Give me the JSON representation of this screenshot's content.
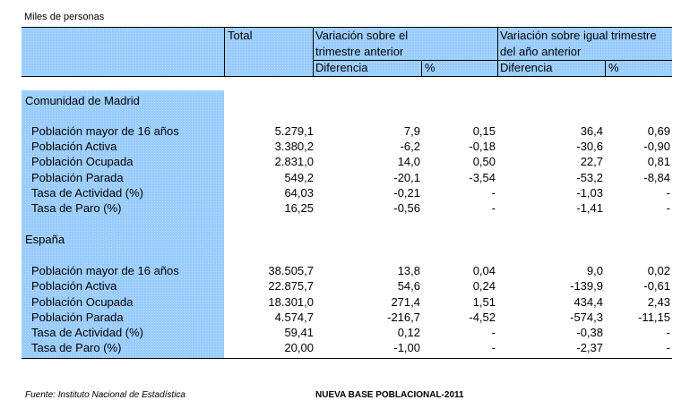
{
  "unit_label": "Miles de personas",
  "header": {
    "total": "Total",
    "var_trim_line1": "Variación sobre el",
    "var_trim_line2": "trimestre anterior",
    "var_anio_line1": "Variación sobre igual trimestre",
    "var_anio_line2": "del año anterior",
    "diferencia": "Diferencia",
    "pct": "%"
  },
  "sections": [
    {
      "title": "Comunidad de Madrid",
      "rows": [
        {
          "label": "Población mayor de 16 años",
          "total": "5.279,1",
          "dif_trim": "7,9",
          "pct_trim": "0,15",
          "dif_anio": "36,4",
          "pct_anio": "0,69"
        },
        {
          "label": "Población Activa",
          "total": "3.380,2",
          "dif_trim": "-6,2",
          "pct_trim": "-0,18",
          "dif_anio": "-30,6",
          "pct_anio": "-0,90"
        },
        {
          "label": "Población Ocupada",
          "total": "2.831,0",
          "dif_trim": "14,0",
          "pct_trim": "0,50",
          "dif_anio": "22,7",
          "pct_anio": "0,81"
        },
        {
          "label": "Población Parada",
          "total": "549,2",
          "dif_trim": "-20,1",
          "pct_trim": "-3,54",
          "dif_anio": "-53,2",
          "pct_anio": "-8,84"
        },
        {
          "label": "Tasa de Actividad (%)",
          "total": "64,03",
          "dif_trim": "-0,21",
          "pct_trim": "-",
          "dif_anio": "-1,03",
          "pct_anio": "-"
        },
        {
          "label": "Tasa de Paro (%)",
          "total": "16,25",
          "dif_trim": "-0,56",
          "pct_trim": "-",
          "dif_anio": "-1,41",
          "pct_anio": "-"
        }
      ]
    },
    {
      "title": "España",
      "rows": [
        {
          "label": "Población mayor de 16 años",
          "total": "38.505,7",
          "dif_trim": "13,8",
          "pct_trim": "0,04",
          "dif_anio": "9,0",
          "pct_anio": "0,02"
        },
        {
          "label": "Población Activa",
          "total": "22.875,7",
          "dif_trim": "54,6",
          "pct_trim": "0,24",
          "dif_anio": "-139,9",
          "pct_anio": "-0,61"
        },
        {
          "label": "Población Ocupada",
          "total": "18.301,0",
          "dif_trim": "271,4",
          "pct_trim": "1,51",
          "dif_anio": "434,4",
          "pct_anio": "2,43"
        },
        {
          "label": "Población Parada",
          "total": "4.574,7",
          "dif_trim": "-216,7",
          "pct_trim": "-4,52",
          "dif_anio": "-574,3",
          "pct_anio": "-11,15"
        },
        {
          "label": "Tasa de Actividad (%)",
          "total": "59,41",
          "dif_trim": "0,12",
          "pct_trim": "-",
          "dif_anio": "-0,38",
          "pct_anio": "-"
        },
        {
          "label": "Tasa de Paro (%)",
          "total": "20,00",
          "dif_trim": "-1,00",
          "pct_trim": "-",
          "dif_anio": "-2,37",
          "pct_anio": "-"
        }
      ]
    }
  ],
  "footer": {
    "source": "Fuente: Instituto Nacional de Estadística",
    "note": "NUEVA BASE POBLACIONAL-2011"
  }
}
